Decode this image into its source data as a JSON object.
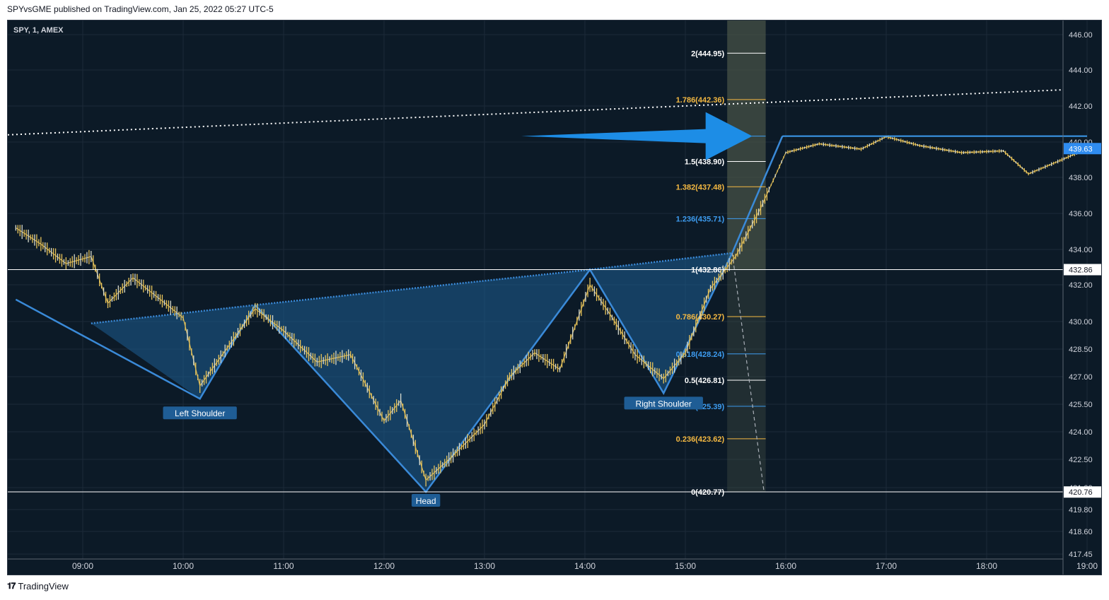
{
  "header": {
    "published": "SPYvsGME published on TradingView.com, Jan 25, 2022 05:27 UTC-5"
  },
  "footer": {
    "brand": "TradingView"
  },
  "colors": {
    "background": "#0c1a27",
    "fib_white": "#ffffff",
    "fib_orange": "#f5b942",
    "fib_blue": "#3d9cf0",
    "pattern_fill": "#1e5f94",
    "pattern_line": "#3a8ad8",
    "arrow": "#1d8de6",
    "candle": "#e8c35a"
  },
  "chart_data": {
    "type": "line",
    "symbol": "SPY, 1, AMEX",
    "x_ticks": [
      "09:00",
      "10:00",
      "11:00",
      "12:00",
      "13:00",
      "14:00",
      "15:00",
      "16:00",
      "17:00",
      "18:00",
      "19:00"
    ],
    "y_ticks": [
      "446.00",
      "444.00",
      "442.00",
      "440.00",
      "438.00",
      "436.00",
      "434.00",
      "432.00",
      "430.00",
      "428.50",
      "427.00",
      "425.50",
      "424.00",
      "422.50",
      "421.00",
      "419.80",
      "418.60",
      "417.45"
    ],
    "price_labels": [
      {
        "label": "439.63",
        "value": 439.63,
        "style": "blue"
      },
      {
        "label": "432.86",
        "value": 432.86,
        "style": "white"
      },
      {
        "label": "420.76",
        "value": 420.76,
        "style": "white"
      }
    ],
    "fib_levels": [
      {
        "label": "2(444.95)",
        "value": 444.95,
        "color": "white"
      },
      {
        "label": "1.786(442.36)",
        "value": 442.36,
        "color": "orange"
      },
      {
        "label": "1.618(440.33)",
        "value": 440.33,
        "color": "blue"
      },
      {
        "label": "1.5(438.90)",
        "value": 438.9,
        "color": "white"
      },
      {
        "label": "1.382(437.48)",
        "value": 437.48,
        "color": "orange"
      },
      {
        "label": "1.236(435.71)",
        "value": 435.71,
        "color": "blue"
      },
      {
        "label": "1(432.86)",
        "value": 432.86,
        "color": "white"
      },
      {
        "label": "0.786(430.27)",
        "value": 430.27,
        "color": "orange"
      },
      {
        "label": "0.618(428.24)",
        "value": 428.24,
        "color": "blue"
      },
      {
        "label": "0.5(426.81)",
        "value": 426.81,
        "color": "white"
      },
      {
        "label": "0.382(425.39)",
        "value": 425.39,
        "color": "blue"
      },
      {
        "label": "0.236(423.62)",
        "value": 423.62,
        "color": "orange"
      },
      {
        "label": "0(420.77)",
        "value": 420.77,
        "color": "white"
      }
    ],
    "annotations": [
      {
        "label": "Left Shoulder",
        "time": "10:10",
        "value": 425.8
      },
      {
        "label": "Head",
        "time": "12:25",
        "value": 420.77
      },
      {
        "label": "Right Shoulder",
        "time": "14:47",
        "value": 426.1
      }
    ],
    "pattern_points": [
      {
        "time": "08:20",
        "value": 431.2
      },
      {
        "time": "10:10",
        "value": 425.8
      },
      {
        "time": "10:43",
        "value": 430.9
      },
      {
        "time": "12:25",
        "value": 420.77
      },
      {
        "time": "14:03",
        "value": 432.86
      },
      {
        "time": "14:47",
        "value": 426.1
      },
      {
        "time": "15:28",
        "value": 433.8
      },
      {
        "time": "15:58",
        "value": 440.33
      }
    ],
    "price_path": [
      [
        "08:20",
        435.2
      ],
      [
        "08:35",
        434.3
      ],
      [
        "08:50",
        433.2
      ],
      [
        "09:05",
        433.6
      ],
      [
        "09:15",
        431.0
      ],
      [
        "09:30",
        432.4
      ],
      [
        "09:45",
        431.3
      ],
      [
        "10:00",
        430.2
      ],
      [
        "10:10",
        426.5
      ],
      [
        "10:25",
        428.4
      ],
      [
        "10:43",
        430.7
      ],
      [
        "11:00",
        429.5
      ],
      [
        "11:20",
        427.8
      ],
      [
        "11:40",
        428.2
      ],
      [
        "12:00",
        424.6
      ],
      [
        "12:10",
        425.7
      ],
      [
        "12:25",
        421.4
      ],
      [
        "12:40",
        422.6
      ],
      [
        "13:00",
        424.4
      ],
      [
        "13:15",
        427.0
      ],
      [
        "13:30",
        428.3
      ],
      [
        "13:45",
        427.4
      ],
      [
        "14:03",
        432.0
      ],
      [
        "14:15",
        430.4
      ],
      [
        "14:30",
        428.2
      ],
      [
        "14:47",
        426.9
      ],
      [
        "15:00",
        428.3
      ],
      [
        "15:15",
        431.8
      ],
      [
        "15:30",
        433.6
      ],
      [
        "15:45",
        436.3
      ],
      [
        "16:00",
        439.4
      ],
      [
        "16:20",
        439.9
      ],
      [
        "16:45",
        439.6
      ],
      [
        "17:00",
        440.3
      ],
      [
        "17:20",
        439.8
      ],
      [
        "17:45",
        439.4
      ],
      [
        "18:10",
        439.5
      ],
      [
        "18:25",
        438.2
      ],
      [
        "18:45",
        439.0
      ],
      [
        "19:00",
        439.63
      ]
    ],
    "extension_segment": [
      [
        "15:28",
        433.8
      ],
      [
        "15:47",
        420.77
      ]
    ],
    "resistance_line": [
      [
        "08:00",
        440.4
      ],
      [
        "19:20",
        442.9
      ]
    ],
    "price_range": [
      417.45,
      446.5
    ],
    "grid": true,
    "arrow": {
      "from_time": "13:22",
      "from_value": 440.33,
      "to_time": "15:40",
      "to_value": 440.33
    }
  }
}
